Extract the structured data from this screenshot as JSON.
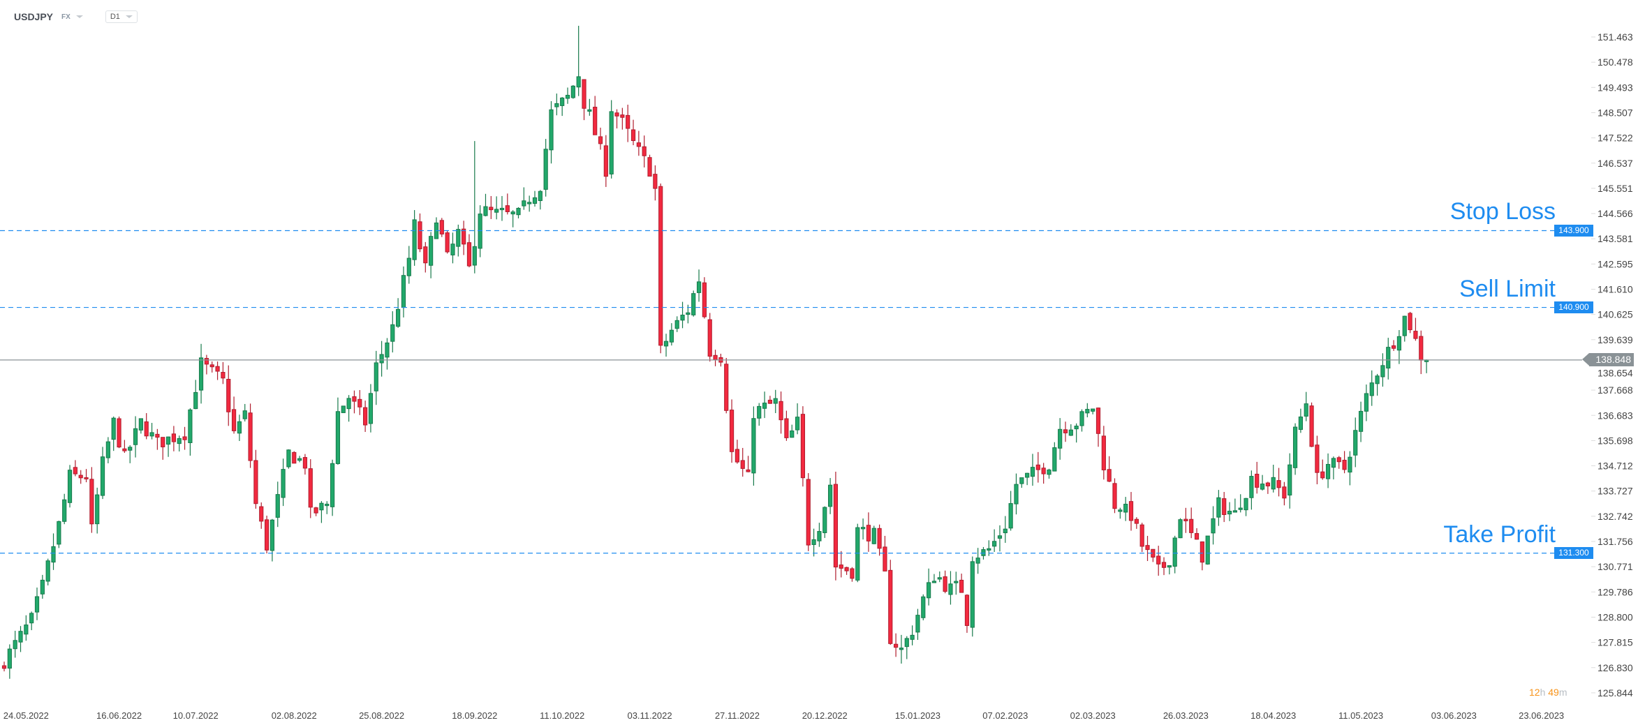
{
  "header": {
    "symbol": "USDJPY",
    "market": "FX",
    "timeframe": "D1"
  },
  "levels": [
    {
      "name": "stop-loss",
      "label": "Stop Loss",
      "price": 143.9,
      "badge": "143.900"
    },
    {
      "name": "sell-limit",
      "label": "Sell Limit",
      "price": 140.9,
      "badge": "140.900"
    },
    {
      "name": "take-profit",
      "label": "Take Profit",
      "price": 131.3,
      "badge": "131.300"
    }
  ],
  "current_price": {
    "value": 138.848,
    "label": "138.848"
  },
  "countdown": {
    "hours": "12",
    "h": "h",
    "minutes": "49",
    "m": "m"
  },
  "colors": {
    "up": "#22a86b",
    "up_border": "#177a4b",
    "down": "#f2293f",
    "down_border": "#b01d2e",
    "level": "#1e8cf0",
    "current": "#8a9296"
  },
  "chart_data": {
    "type": "candlestick",
    "title": "USDJPY D1",
    "bars": 261,
    "ylim": [
      125.844,
      151.463
    ],
    "y_ticks": [
      "151.463",
      "150.478",
      "149.493",
      "148.507",
      "147.522",
      "146.537",
      "145.551",
      "144.566",
      "143.581",
      "142.595",
      "141.610",
      "140.625",
      "139.639",
      "138.654",
      "137.668",
      "136.683",
      "135.698",
      "134.712",
      "133.727",
      "132.742",
      "131.756",
      "130.771",
      "129.786",
      "128.800",
      "127.815",
      "126.830",
      "125.844"
    ],
    "x_ticks": [
      {
        "label": "24.05.2022",
        "bar": 4
      },
      {
        "label": "16.06.2022",
        "bar": 21
      },
      {
        "label": "10.07.2022",
        "bar": 35
      },
      {
        "label": "02.08.2022",
        "bar": 53
      },
      {
        "label": "25.08.2022",
        "bar": 69
      },
      {
        "label": "18.09.2022",
        "bar": 86
      },
      {
        "label": "11.10.2022",
        "bar": 102
      },
      {
        "label": "03.11.2022",
        "bar": 118
      },
      {
        "label": "27.11.2022",
        "bar": 134
      },
      {
        "label": "20.12.2022",
        "bar": 150
      },
      {
        "label": "15.01.2023",
        "bar": 167
      },
      {
        "label": "07.02.2023",
        "bar": 183
      },
      {
        "label": "02.03.2023",
        "bar": 199
      },
      {
        "label": "26.03.2023",
        "bar": 216
      },
      {
        "label": "18.04.2023",
        "bar": 232
      },
      {
        "label": "11.05.2023",
        "bar": 248
      },
      {
        "label": "03.06.2023",
        "bar": 265
      },
      {
        "label": "23.06.2023",
        "bar": 281
      }
    ],
    "close_waypoints": [
      [
        0,
        127.1
      ],
      [
        5,
        128.7
      ],
      [
        7,
        130
      ],
      [
        10,
        132.4
      ],
      [
        12,
        134.3
      ],
      [
        15,
        134.3
      ],
      [
        16,
        132.2
      ],
      [
        18,
        134.8
      ],
      [
        20,
        136.4
      ],
      [
        22,
        135
      ],
      [
        25,
        136.4
      ],
      [
        28,
        135.6
      ],
      [
        33,
        136
      ],
      [
        36,
        138.7
      ],
      [
        40,
        138
      ],
      [
        42,
        136
      ],
      [
        44,
        136.7
      ],
      [
        46,
        133.2
      ],
      [
        48,
        131.6
      ],
      [
        52,
        135.2
      ],
      [
        55,
        134.8
      ],
      [
        56,
        132.8
      ],
      [
        59,
        133.2
      ],
      [
        61,
        136.8
      ],
      [
        63,
        137.4
      ],
      [
        66,
        136.4
      ],
      [
        68,
        138.6
      ],
      [
        71,
        140.1
      ],
      [
        74,
        142.8
      ],
      [
        75,
        144.1
      ],
      [
        77,
        142.4
      ],
      [
        79,
        144.5
      ],
      [
        81,
        142.8
      ],
      [
        83,
        143.8
      ],
      [
        85,
        142.4
      ],
      [
        87,
        144.7
      ],
      [
        91,
        144.5
      ],
      [
        94,
        144.5
      ],
      [
        98,
        145.7
      ],
      [
        100,
        148.5
      ],
      [
        103,
        149.1
      ],
      [
        105,
        150
      ],
      [
        106,
        148.9
      ],
      [
        108,
        147.7
      ],
      [
        110,
        146.3
      ],
      [
        111,
        148.7
      ],
      [
        113,
        148.1
      ],
      [
        115,
        147.3
      ],
      [
        118,
        146.3
      ],
      [
        119,
        145.5
      ],
      [
        120,
        139.2
      ],
      [
        122,
        140
      ],
      [
        125,
        140.8
      ],
      [
        127,
        142
      ],
      [
        129,
        139.2
      ],
      [
        131,
        139
      ],
      [
        133,
        135.2
      ],
      [
        136,
        134.2
      ],
      [
        137,
        136.8
      ],
      [
        141,
        137.2
      ],
      [
        143,
        135.6
      ],
      [
        145,
        136.4
      ],
      [
        147,
        131.8
      ],
      [
        149,
        132.4
      ],
      [
        151,
        134
      ],
      [
        152,
        130.8
      ],
      [
        155,
        130.6
      ],
      [
        156,
        132.2
      ],
      [
        159,
        132
      ],
      [
        161,
        130.4
      ],
      [
        162,
        128
      ],
      [
        164,
        127.5
      ],
      [
        166,
        128.3
      ],
      [
        168,
        129.5
      ],
      [
        170,
        130.4
      ],
      [
        173,
        129.9
      ],
      [
        175,
        129.9
      ],
      [
        176,
        128.7
      ],
      [
        177,
        131.2
      ],
      [
        180,
        131.4
      ],
      [
        183,
        132.4
      ],
      [
        185,
        134
      ],
      [
        188,
        134.4
      ],
      [
        191,
        134.8
      ],
      [
        193,
        136.2
      ],
      [
        196,
        136.4
      ],
      [
        199,
        137
      ],
      [
        201,
        134.8
      ],
      [
        203,
        133.2
      ],
      [
        206,
        132.8
      ],
      [
        208,
        131.6
      ],
      [
        211,
        130.6
      ],
      [
        213,
        131
      ],
      [
        215,
        132.8
      ],
      [
        217,
        132
      ],
      [
        219,
        131.2
      ],
      [
        222,
        133.2
      ],
      [
        225,
        132.8
      ],
      [
        228,
        134.2
      ],
      [
        232,
        134
      ],
      [
        234,
        133.6
      ],
      [
        236,
        136
      ],
      [
        238,
        137.2
      ],
      [
        240,
        134.2
      ],
      [
        242,
        134.8
      ],
      [
        245,
        134.6
      ],
      [
        247,
        136
      ],
      [
        249,
        137.4
      ],
      [
        251,
        138.4
      ],
      [
        254,
        139.6
      ],
      [
        256,
        140.5
      ],
      [
        257,
        140.2
      ],
      [
        259,
        139
      ],
      [
        260,
        138.848
      ]
    ],
    "notable_highs": [
      [
        105,
        151.9
      ],
      [
        86,
        147.4
      ]
    ]
  }
}
